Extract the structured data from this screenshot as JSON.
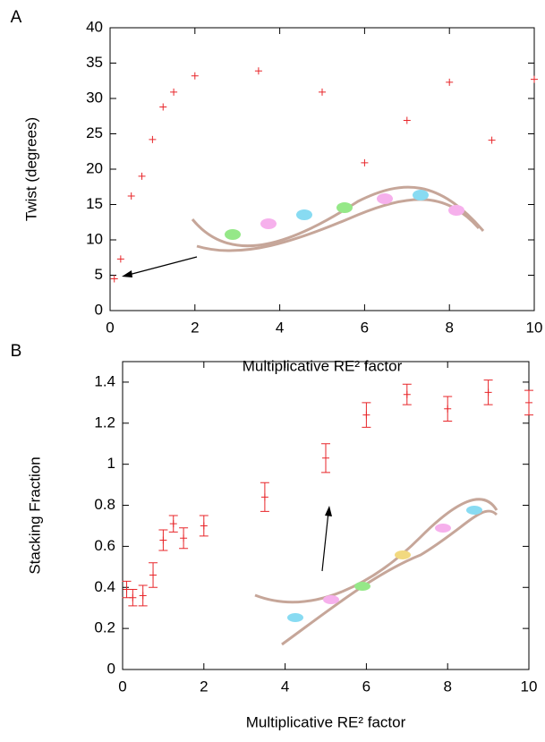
{
  "chart_data": [
    {
      "type": "scatter",
      "panel_label": "A",
      "ylabel": "Twist (degrees)",
      "xlabel": "Multiplicative RE² factor",
      "x": [
        0.1,
        0.25,
        0.5,
        0.75,
        1,
        1.25,
        1.5,
        2,
        3.5,
        5,
        6,
        7,
        8,
        9,
        10
      ],
      "values": [
        4.5,
        7.3,
        16.2,
        19,
        24.2,
        28.8,
        30.9,
        33.2,
        33.9,
        30.9,
        20.9,
        26.9,
        32.3,
        24.1,
        32.7
      ],
      "color": "#e8262a",
      "xlim": [
        0,
        10
      ],
      "xticks": [
        0,
        2,
        4,
        6,
        8,
        10
      ],
      "ylim": [
        0,
        40
      ],
      "yticks": [
        0,
        5,
        10,
        15,
        20,
        25,
        30,
        35,
        40
      ]
    },
    {
      "type": "errorbar",
      "panel_label": "B",
      "ylabel": "Stacking Fraction",
      "xlabel": "Multiplicative RE² factor",
      "x": [
        0.1,
        0.25,
        0.5,
        0.75,
        1,
        1.25,
        1.5,
        2,
        3.5,
        5,
        6,
        7,
        8,
        9,
        10
      ],
      "values": [
        0.39,
        0.35,
        0.36,
        0.46,
        0.63,
        0.71,
        0.64,
        0.7,
        0.84,
        1.03,
        1.24,
        1.34,
        1.27,
        1.35,
        1.3
      ],
      "errors": [
        0.04,
        0.04,
        0.05,
        0.06,
        0.05,
        0.04,
        0.05,
        0.05,
        0.07,
        0.07,
        0.06,
        0.05,
        0.06,
        0.06,
        0.06
      ],
      "color": "#e8262a",
      "xlim": [
        0,
        10
      ],
      "xticks": [
        0,
        2,
        4,
        6,
        8,
        10
      ],
      "ylim": [
        0,
        1.5
      ],
      "yticks": [
        0,
        0.2,
        0.4,
        0.6,
        0.8,
        1,
        1.2,
        1.4
      ]
    }
  ]
}
